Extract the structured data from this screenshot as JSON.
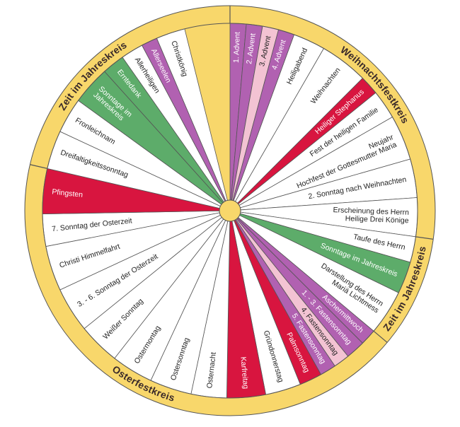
{
  "colors": {
    "ring": "#f8d76b",
    "white": "#ffffff",
    "purple": "#b161b1",
    "pink": "#f3c3d3",
    "red": "#d8153f",
    "green": "#5dac6a",
    "text_dark": "#222222",
    "text_light": "#ffffff"
  },
  "ring_titles": [
    {
      "text": "Weihnachtsfestkreis"
    },
    {
      "text": "Zeit im Jahreskreis"
    },
    {
      "text": "Osterfestkreis"
    },
    {
      "text": "Zeit im Jahreskreis"
    }
  ],
  "segments": [
    {
      "name": "1-advent",
      "label": "1. Advent",
      "color": "purple",
      "span": 5
    },
    {
      "name": "2-advent",
      "label": "2. Advent",
      "color": "purple",
      "span": 5
    },
    {
      "name": "3-advent",
      "label": "3. Advent",
      "color": "pink",
      "span": 5
    },
    {
      "name": "4-advent",
      "label": "4. Advent",
      "color": "purple",
      "span": 5
    },
    {
      "name": "heiligabend",
      "label": "Heiligabend",
      "color": "white",
      "span": 10
    },
    {
      "name": "weihnachten",
      "label": "Weihnachten",
      "color": "white",
      "span": 15
    },
    {
      "name": "heiliger-stephanus",
      "label": "Heiliger Stephanus",
      "color": "red",
      "span": 6
    },
    {
      "name": "fest-der-heiligen-familie",
      "label": "Fest der heiligen Familie",
      "color": "white",
      "span": 9
    },
    {
      "name": "neujahr",
      "label": [
        "Neujahr",
        "Hochfest der Gottesmutter Maria"
      ],
      "color": "white",
      "span": 14
    },
    {
      "name": "2-sonntag-nach-weihnachten",
      "label": "2. Sonntag nach Weihnachten",
      "color": "white",
      "span": 12
    },
    {
      "name": "erscheinung-des-herrn",
      "label": [
        "Erscheinung des Herrn",
        "Heilige Drei Könige"
      ],
      "color": "white",
      "span": 12
    },
    {
      "name": "taufe-des-herrn",
      "label": "Taufe des Herrn",
      "color": "white",
      "span": 8
    },
    {
      "name": "sonntage-im-jahreskreis-1",
      "label": "Sonntage im Jahreskreis",
      "color": "green",
      "span": 10
    },
    {
      "name": "darstellung-des-herrn",
      "label": [
        "Darstellung des Herrn",
        "Mariä Lichtmess"
      ],
      "color": "white",
      "span": 14
    },
    {
      "name": "aschermittwoch",
      "label": "Aschermittwoch",
      "color": "purple",
      "span": 5
    },
    {
      "name": "1-3-fastensonntag",
      "label": "1. - 3. Fastensonntag",
      "color": "purple",
      "span": 6
    },
    {
      "name": "4-fastensonntag",
      "label": "4. Fastensonntag",
      "color": "pink",
      "span": 5
    },
    {
      "name": "5-fastensonntag",
      "label": "5. Fastensonntag",
      "color": "purple",
      "span": 5
    },
    {
      "name": "palmsonntag",
      "label": "Palmsonntag",
      "color": "red",
      "span": 7
    },
    {
      "name": "gruendonnerstag",
      "label": "Gründonnerstag",
      "color": "white",
      "span": 11
    },
    {
      "name": "karfreitag",
      "label": "Karfreitag",
      "color": "red",
      "span": 12
    },
    {
      "name": "osternacht",
      "label": "Osternacht",
      "color": "white",
      "span": 11
    },
    {
      "name": "ostersonntag",
      "label": "Ostersonntag",
      "color": "white",
      "span": 13
    },
    {
      "name": "ostermontag",
      "label": "Ostermontag",
      "color": "white",
      "span": 13
    },
    {
      "name": "weisser-sonntag",
      "label": "Weißer Sonntag",
      "color": "white",
      "span": 13
    },
    {
      "name": "3-6-sonntag-der-osterzeit",
      "label": "3. - 6. Sonntag der Osterzeit",
      "color": "white",
      "span": 14
    },
    {
      "name": "christi-himmelfahrt",
      "label": "Christi Himmelfahrt",
      "color": "white",
      "span": 14
    },
    {
      "name": "7-sonntag-der-osterzeit",
      "label": "7. Sonntag der Osterzeit",
      "color": "white",
      "span": 10
    },
    {
      "name": "pfingsten",
      "label": "Pfingsten",
      "color": "red",
      "span": 14
    },
    {
      "name": "dreifaltigkeitssonntag",
      "label": "Dreifaltigkeitssonntag",
      "color": "white",
      "span": 12
    },
    {
      "name": "fronleichnam",
      "label": "Fronleichnam",
      "color": "white",
      "span": 11
    },
    {
      "name": "sonntage-im-jahreskreis-2",
      "label": [
        "Sonntage im",
        "Jahreskreis"
      ],
      "color": "green",
      "span": 12
    },
    {
      "name": "erntedank",
      "label": "Erntedank",
      "color": "green",
      "span": 7
    },
    {
      "name": "allerheiligen",
      "label": "Allerheiligen",
      "color": "white",
      "span": 7
    },
    {
      "name": "allerseelen",
      "label": "Allerseelen",
      "color": "purple",
      "span": 5
    },
    {
      "name": "christkoenig",
      "label": "Christkönig",
      "color": "white",
      "span": 9
    }
  ]
}
